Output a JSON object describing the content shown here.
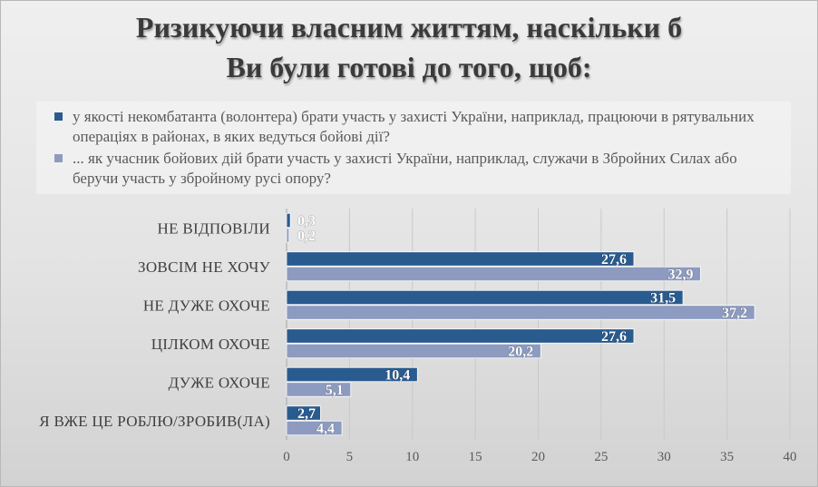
{
  "chart_data": {
    "type": "bar",
    "orientation": "horizontal",
    "title": "Ризикуючи власним життям, наскільки б Ви були готові до того, щоб:",
    "title_lines": [
      "Ризикуючи власним життям, наскільки б",
      "Ви були готові до того, щоб:"
    ],
    "categories": [
      "НЕ ВІДПОВІЛИ",
      "ЗОВСІМ НЕ ХОЧУ",
      "НЕ ДУЖЕ ОХОЧЕ",
      "ЦІЛКОМ ОХОЧЕ",
      "ДУЖЕ ОХОЧЕ",
      "Я ВЖЕ ЦЕ РОБЛЮ/ЗРОБИВ(ЛА)"
    ],
    "series": [
      {
        "name": "у якості некомбатанта (волонтера) брати участь у захисті України, наприклад, працюючи в рятувальних операціях в районах, в яких ведуться бойові дії?",
        "values": [
          0.3,
          27.6,
          31.5,
          27.6,
          10.4,
          2.7
        ],
        "labels": [
          "0,3",
          "27,6",
          "31,5",
          "27,6",
          "10,4",
          "2,7"
        ],
        "color": "#2a5b8f"
      },
      {
        "name": "... як учасник бойових дій брати участь у захисті України, наприклад, служачи в Збройних Силах або беручи участь у збройному русі опору?",
        "values": [
          0.2,
          32.9,
          37.2,
          20.2,
          5.1,
          4.4
        ],
        "labels": [
          "0,2",
          "32,9",
          "37,2",
          "20,2",
          "5,1",
          "4,4"
        ],
        "color": "#8e9bc0"
      }
    ],
    "xlim": [
      0,
      40
    ],
    "xticks": [
      0,
      5,
      10,
      15,
      20,
      25,
      30,
      35,
      40
    ],
    "grid": true,
    "legend_position": "top"
  }
}
